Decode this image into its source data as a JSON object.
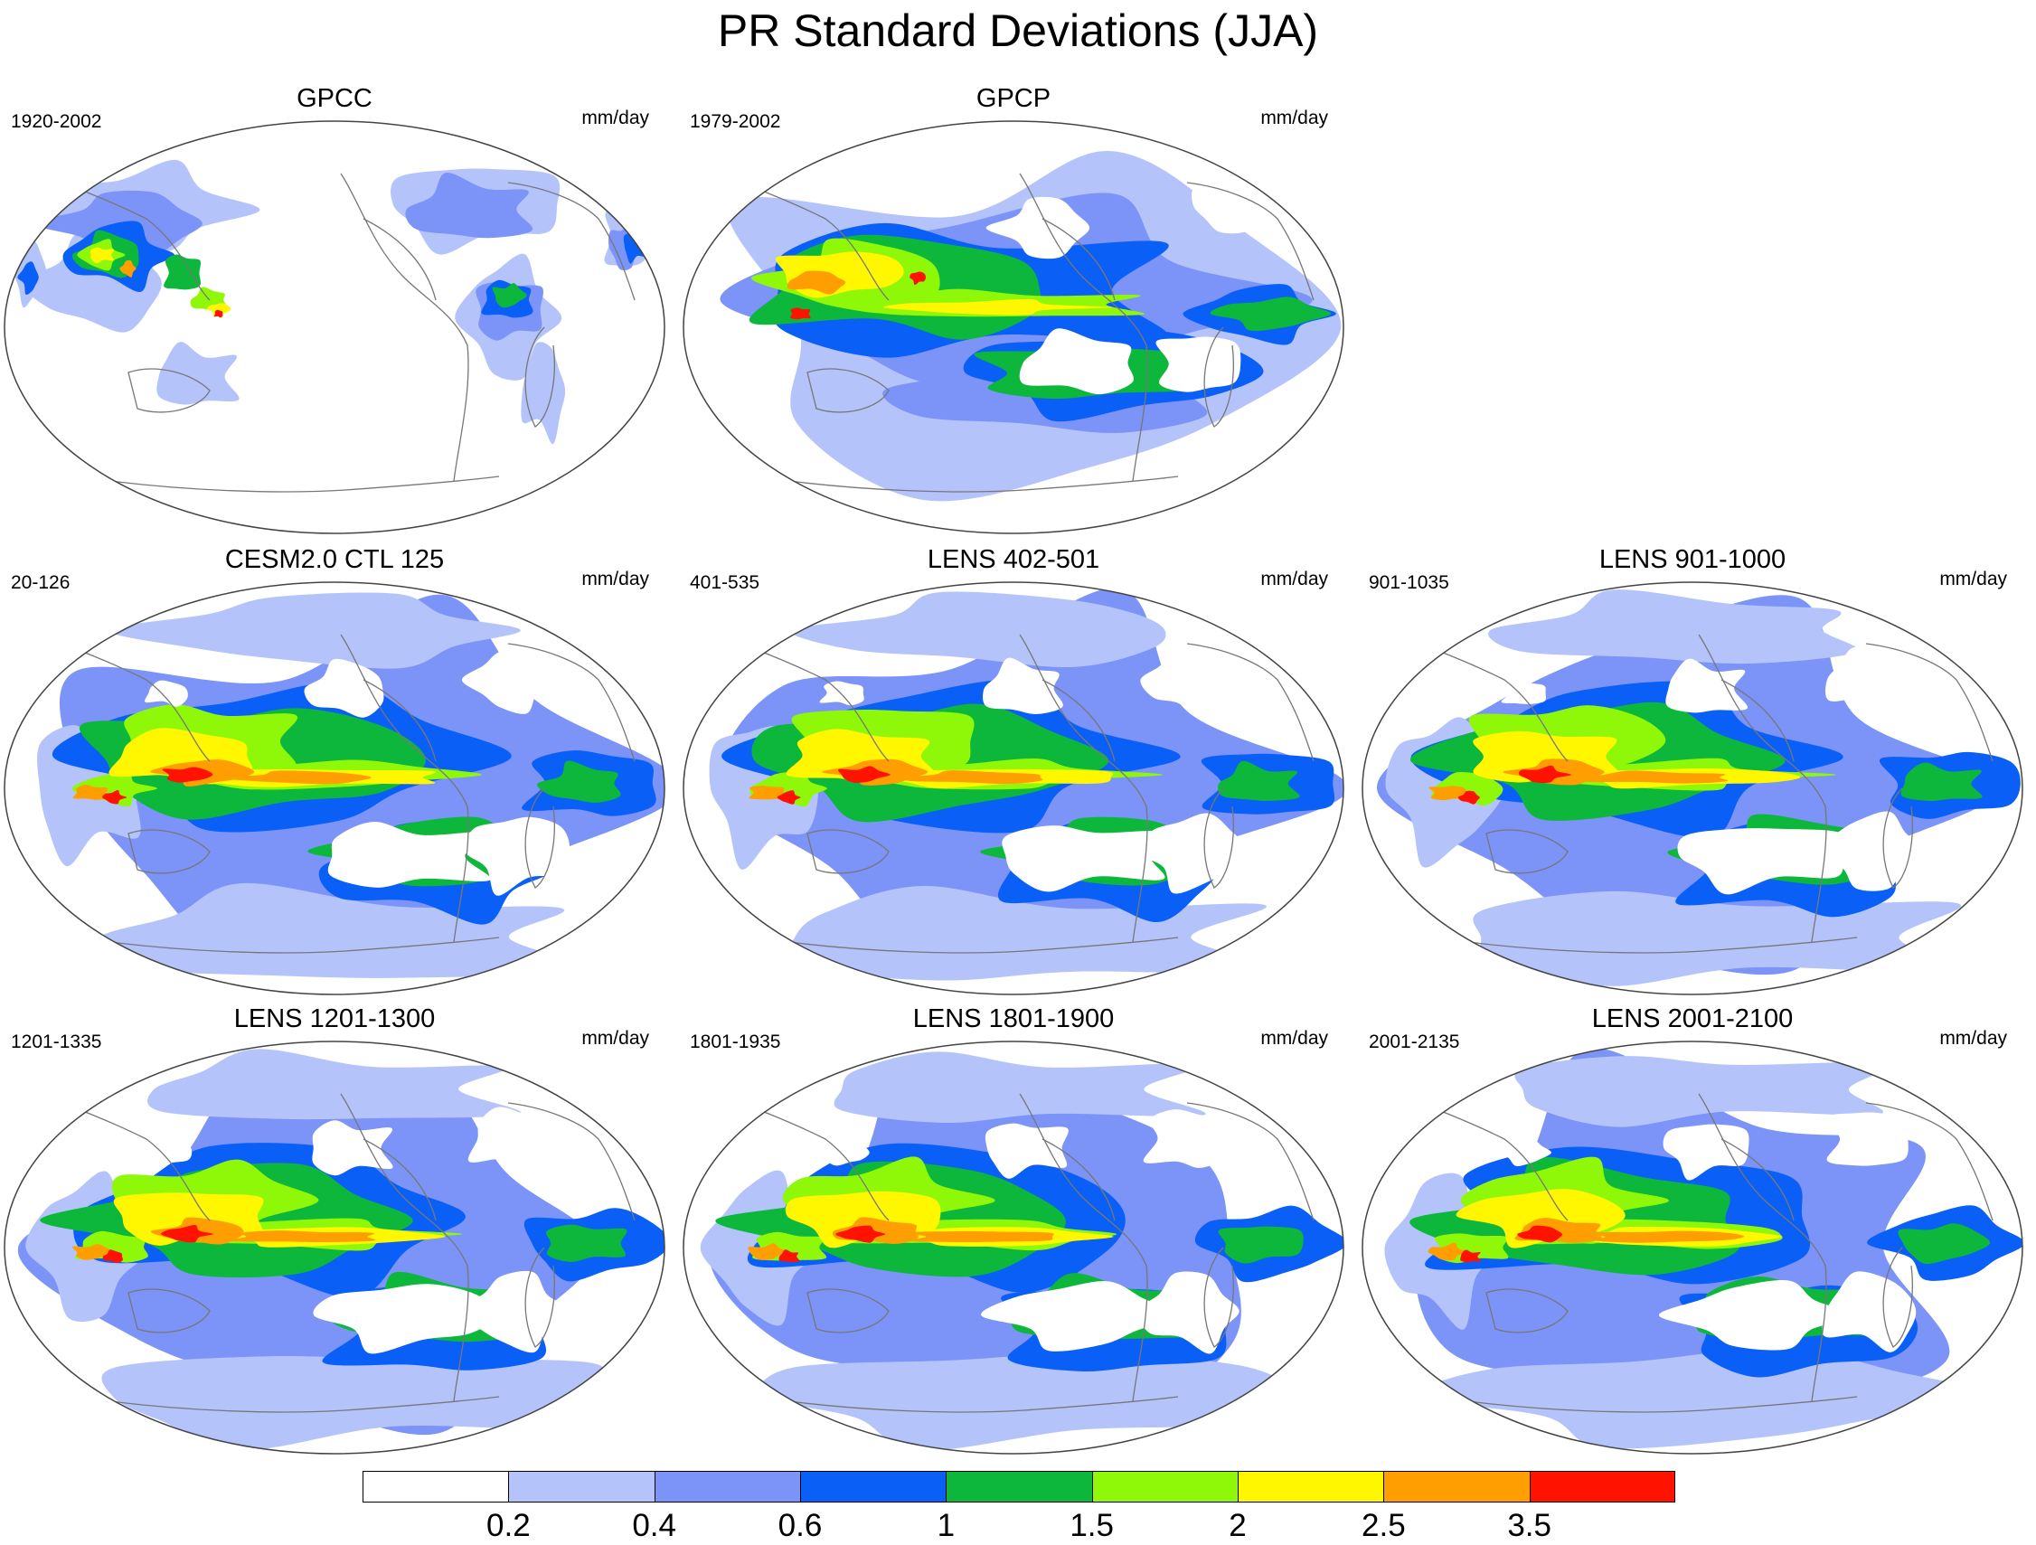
{
  "title": "PR Standard Deviations (JJA)",
  "panels": [
    {
      "id": "gpcc",
      "title": "GPCC",
      "range": "1920-2002",
      "units": "mm/day",
      "style": "obs-land"
    },
    {
      "id": "gpcp",
      "title": "GPCP",
      "range": "1979-2002",
      "units": "mm/day",
      "style": "obs-global"
    },
    {
      "id": "cesm2-ctl-125",
      "title": "CESM2.0 CTL 125",
      "range": "20-126",
      "units": "mm/day",
      "style": "model"
    },
    {
      "id": "lens-402-501",
      "title": "LENS 402-501",
      "range": "401-535",
      "units": "mm/day",
      "style": "model"
    },
    {
      "id": "lens-901-1000",
      "title": "LENS 901-1000",
      "range": "901-1035",
      "units": "mm/day",
      "style": "model"
    },
    {
      "id": "lens-1201-1300",
      "title": "LENS 1201-1300",
      "range": "1201-1335",
      "units": "mm/day",
      "style": "model"
    },
    {
      "id": "lens-1801-1900",
      "title": "LENS 1801-1900",
      "range": "1801-1935",
      "units": "mm/day",
      "style": "model"
    },
    {
      "id": "lens-2001-2100",
      "title": "LENS 2001-2100",
      "range": "2001-2135",
      "units": "mm/day",
      "style": "model"
    }
  ],
  "colorbar": {
    "colors": [
      "#ffffff",
      "#b4c4fa",
      "#7c93f7",
      "#0a5ff7",
      "#0db73b",
      "#8ff809",
      "#fff700",
      "#ff9e00",
      "#ff1300"
    ],
    "labels": [
      "0.2",
      "0.4",
      "0.6",
      "1",
      "1.5",
      "2",
      "2.5",
      "3.5"
    ]
  }
}
